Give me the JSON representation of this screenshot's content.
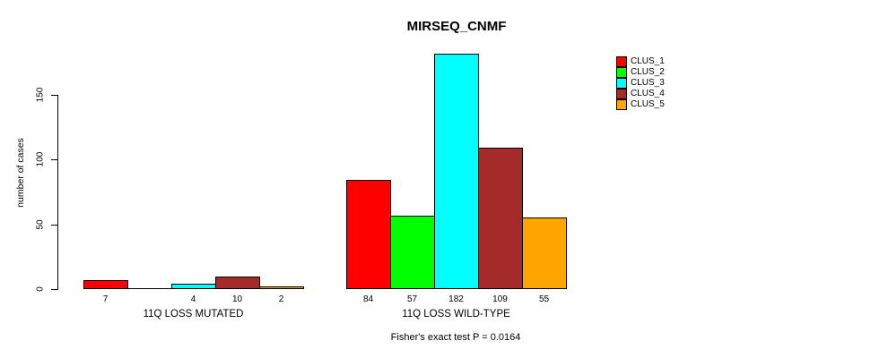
{
  "chart_data": {
    "type": "bar",
    "title": "MIRSEQ_CNMF",
    "ylabel": "number of cases",
    "xlabel": "",
    "yticks": [
      0,
      50,
      100,
      150
    ],
    "ylim": [
      0,
      182
    ],
    "grid": false,
    "legend_position": "top-right",
    "categories": [
      "11Q LOSS MUTATED",
      "11Q LOSS WILD-TYPE"
    ],
    "series": [
      {
        "name": "CLUS_1",
        "color": "#FF0000",
        "values": [
          7,
          84
        ]
      },
      {
        "name": "CLUS_2",
        "color": "#00FF00",
        "values": [
          0,
          57
        ]
      },
      {
        "name": "CLUS_3",
        "color": "#00FFFF",
        "values": [
          4,
          182
        ]
      },
      {
        "name": "CLUS_4",
        "color": "#A52A2A",
        "values": [
          10,
          109
        ]
      },
      {
        "name": "CLUS_5",
        "color": "#FFA500",
        "values": [
          2,
          55
        ]
      }
    ],
    "bar_value_labels_shown": true,
    "footnote": "Fisher's exact test P = 0.0164"
  }
}
